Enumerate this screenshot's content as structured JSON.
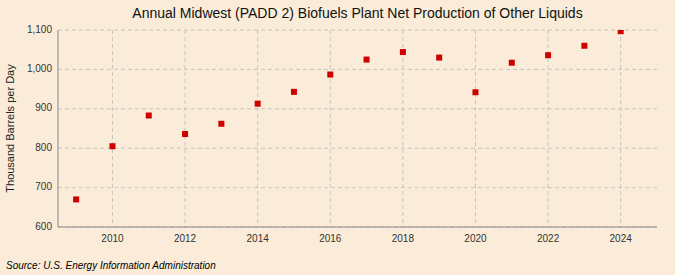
{
  "chart_data": {
    "type": "scatter",
    "title": "Annual Midwest (PADD 2) Biofuels Plant Net Production of Other Liquids",
    "y_label": "Thousand Barrels per Day",
    "annotations": [
      "Source: U.S. Energy Information Administration"
    ],
    "x": [
      2009,
      2010,
      2011,
      2012,
      2013,
      2014,
      2015,
      2016,
      2017,
      2018,
      2019,
      2020,
      2021,
      2022,
      2023,
      2024
    ],
    "values": [
      670,
      805,
      883,
      836,
      862,
      913,
      943,
      987,
      1025,
      1044,
      1030,
      942,
      1017,
      1036,
      1060,
      1097
    ],
    "color": "#cc0000",
    "marker": "square",
    "grid": true,
    "xlim": [
      2008.5,
      2025.0
    ],
    "xticks": [
      2010,
      2012,
      2014,
      2016,
      2018,
      2020,
      2022,
      2024
    ],
    "ylim": [
      600,
      1100
    ],
    "yticks": [
      600,
      700,
      800,
      900,
      {
        "value": 1000,
        "label": "1,000"
      },
      {
        "value": 1100,
        "label": "1,100"
      }
    ]
  }
}
